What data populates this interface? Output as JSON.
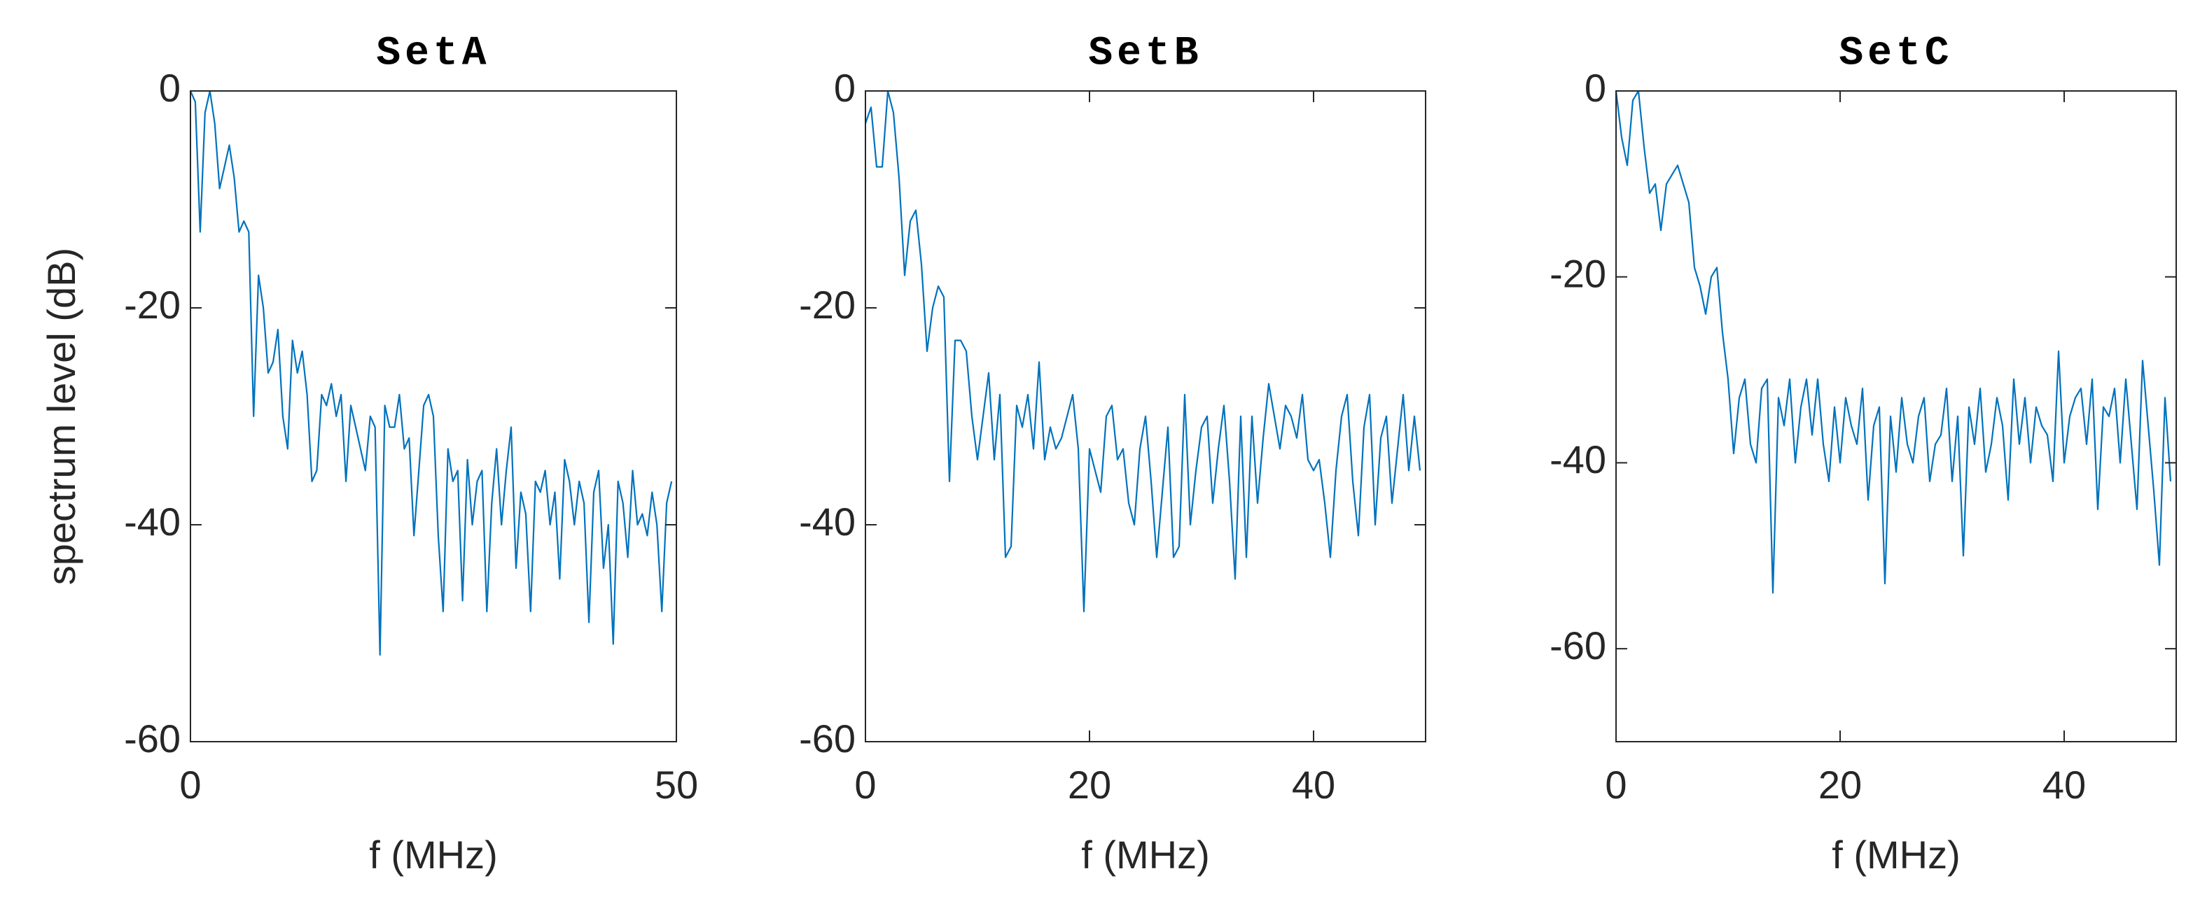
{
  "chart_data": [
    {
      "type": "line",
      "title": "SetA",
      "xlabel": "f (MHz)",
      "ylabel": "spectrum level (dB)",
      "color": "#0072bd",
      "x": [
        0,
        0.5,
        1,
        1.5,
        2,
        2.5,
        3,
        3.5,
        4,
        4.5,
        5,
        5.5,
        6,
        6.5,
        7,
        7.5,
        8,
        8.5,
        9,
        9.5,
        10,
        10.5,
        11,
        11.5,
        12,
        12.5,
        13,
        13.5,
        14,
        14.5,
        15,
        15.5,
        16,
        16.5,
        17,
        17.5,
        18,
        18.5,
        19,
        19.5,
        20,
        20.5,
        21,
        21.5,
        22,
        22.5,
        23,
        23.5,
        24,
        24.5,
        25,
        25.5,
        26,
        26.5,
        27,
        27.5,
        28,
        28.5,
        29,
        29.5,
        30,
        30.5,
        31,
        31.5,
        32,
        32.5,
        33,
        33.5,
        34,
        34.5,
        35,
        35.5,
        36,
        36.5,
        37,
        37.5,
        38,
        38.5,
        39,
        39.5,
        40,
        40.5,
        41,
        41.5,
        42,
        42.5,
        43,
        43.5,
        44,
        44.5,
        45,
        45.5,
        46,
        46.5,
        47,
        47.5,
        48,
        48.5,
        49,
        49.5
      ],
      "values": [
        0,
        -1,
        -13,
        -2,
        0,
        -3,
        -9,
        -7,
        -5,
        -8,
        -13,
        -12,
        -13,
        -30,
        -17,
        -20,
        -26,
        -25,
        -22,
        -30,
        -33,
        -23,
        -26,
        -24,
        -28,
        -36,
        -35,
        -28,
        -29,
        -27,
        -30,
        -28,
        -36,
        -29,
        -31,
        -33,
        -35,
        -30,
        -31,
        -52,
        -29,
        -31,
        -31,
        -28,
        -33,
        -32,
        -41,
        -35,
        -29,
        -28,
        -30,
        -41,
        -48,
        -33,
        -36,
        -35,
        -47,
        -34,
        -40,
        -36,
        -35,
        -48,
        -38,
        -33,
        -40,
        -35,
        -31,
        -44,
        -37,
        -39,
        -48,
        -36,
        -37,
        -35,
        -40,
        -37,
        -45,
        -34,
        -36,
        -40,
        -36,
        -38,
        -49,
        -37,
        -35,
        -44,
        -40,
        -51,
        -36,
        -38,
        -43,
        -35,
        -40,
        -39,
        -41,
        -37,
        -40,
        -48,
        -38,
        -36
      ],
      "xlim": [
        0,
        50
      ],
      "xticks": [
        0,
        50
      ],
      "ylim": [
        -60,
        0
      ],
      "yticks": [
        -60,
        -40,
        -20,
        0
      ]
    },
    {
      "type": "line",
      "title": "SetB",
      "xlabel": "f (MHz)",
      "color": "#0072bd",
      "x": [
        0,
        0.5,
        1,
        1.5,
        2,
        2.5,
        3,
        3.5,
        4,
        4.5,
        5,
        5.5,
        6,
        6.5,
        7,
        7.5,
        8,
        8.5,
        9,
        9.5,
        10,
        10.5,
        11,
        11.5,
        12,
        12.5,
        13,
        13.5,
        14,
        14.5,
        15,
        15.5,
        16,
        16.5,
        17,
        17.5,
        18,
        18.5,
        19,
        19.5,
        20,
        20.5,
        21,
        21.5,
        22,
        22.5,
        23,
        23.5,
        24,
        24.5,
        25,
        25.5,
        26,
        26.5,
        27,
        27.5,
        28,
        28.5,
        29,
        29.5,
        30,
        30.5,
        31,
        31.5,
        32,
        32.5,
        33,
        33.5,
        34,
        34.5,
        35,
        35.5,
        36,
        36.5,
        37,
        37.5,
        38,
        38.5,
        39,
        39.5,
        40,
        40.5,
        41,
        41.5,
        42,
        42.5,
        43,
        43.5,
        44,
        44.5,
        45,
        45.5,
        46,
        46.5,
        47,
        47.5,
        48,
        48.5,
        49,
        49.5
      ],
      "values": [
        -3,
        -1.5,
        -7,
        -7,
        0,
        -2,
        -8,
        -17,
        -12,
        -11,
        -16,
        -24,
        -20,
        -18,
        -19,
        -36,
        -23,
        -23,
        -24,
        -30,
        -34,
        -30,
        -26,
        -34,
        -28,
        -43,
        -42,
        -29,
        -31,
        -28,
        -33,
        -25,
        -34,
        -31,
        -33,
        -32,
        -30,
        -28,
        -33,
        -48,
        -33,
        -35,
        -37,
        -30,
        -29,
        -34,
        -33,
        -38,
        -40,
        -33,
        -30,
        -36,
        -43,
        -37,
        -31,
        -43,
        -42,
        -28,
        -40,
        -35,
        -31,
        -30,
        -38,
        -33,
        -29,
        -36,
        -45,
        -30,
        -43,
        -30,
        -38,
        -32,
        -27,
        -30,
        -33,
        -29,
        -30,
        -32,
        -28,
        -34,
        -35,
        -34,
        -38,
        -43,
        -35,
        -30,
        -28,
        -36,
        -41,
        -31,
        -28,
        -40,
        -32,
        -30,
        -38,
        -33,
        -28,
        -35,
        -30,
        -35
      ],
      "xlim": [
        0,
        50
      ],
      "xticks": [
        0,
        20,
        40
      ],
      "ylim": [
        -60,
        0
      ],
      "yticks": [
        -60,
        -40,
        -20,
        0
      ]
    },
    {
      "type": "line",
      "title": "SetC",
      "xlabel": "f (MHz)",
      "color": "#0072bd",
      "x": [
        0,
        0.5,
        1,
        1.5,
        2,
        2.5,
        3,
        3.5,
        4,
        4.5,
        5,
        5.5,
        6,
        6.5,
        7,
        7.5,
        8,
        8.5,
        9,
        9.5,
        10,
        10.5,
        11,
        11.5,
        12,
        12.5,
        13,
        13.5,
        14,
        14.5,
        15,
        15.5,
        16,
        16.5,
        17,
        17.5,
        18,
        18.5,
        19,
        19.5,
        20,
        20.5,
        21,
        21.5,
        22,
        22.5,
        23,
        23.5,
        24,
        24.5,
        25,
        25.5,
        26,
        26.5,
        27,
        27.5,
        28,
        28.5,
        29,
        29.5,
        30,
        30.5,
        31,
        31.5,
        32,
        32.5,
        33,
        33.5,
        34,
        34.5,
        35,
        35.5,
        36,
        36.5,
        37,
        37.5,
        38,
        38.5,
        39,
        39.5,
        40,
        40.5,
        41,
        41.5,
        42,
        42.5,
        43,
        43.5,
        44,
        44.5,
        45,
        45.5,
        46,
        46.5,
        47,
        47.5,
        48,
        48.5,
        49,
        49.5
      ],
      "values": [
        0,
        -5,
        -8,
        -1,
        0,
        -6,
        -11,
        -10,
        -15,
        -10,
        -9,
        -8,
        -10,
        -12,
        -19,
        -21,
        -24,
        -20,
        -19,
        -26,
        -31,
        -39,
        -33,
        -31,
        -38,
        -40,
        -32,
        -31,
        -54,
        -33,
        -36,
        -31,
        -40,
        -34,
        -31,
        -37,
        -31,
        -38,
        -42,
        -34,
        -40,
        -33,
        -36,
        -38,
        -32,
        -44,
        -36,
        -34,
        -53,
        -35,
        -41,
        -33,
        -38,
        -40,
        -35,
        -33,
        -42,
        -38,
        -37,
        -32,
        -42,
        -35,
        -50,
        -34,
        -38,
        -32,
        -41,
        -38,
        -33,
        -36,
        -44,
        -31,
        -38,
        -33,
        -40,
        -34,
        -36,
        -37,
        -42,
        -28,
        -40,
        -35,
        -33,
        -32,
        -38,
        -31,
        -45,
        -34,
        -35,
        -32,
        -40,
        -31,
        -38,
        -45,
        -29,
        -36,
        -43,
        -51,
        -33,
        -42
      ],
      "xlim": [
        0,
        50
      ],
      "xticks": [
        0,
        20,
        40
      ],
      "ylim": [
        -70,
        0
      ],
      "yticks": [
        -60,
        -40,
        -20,
        0
      ]
    }
  ]
}
